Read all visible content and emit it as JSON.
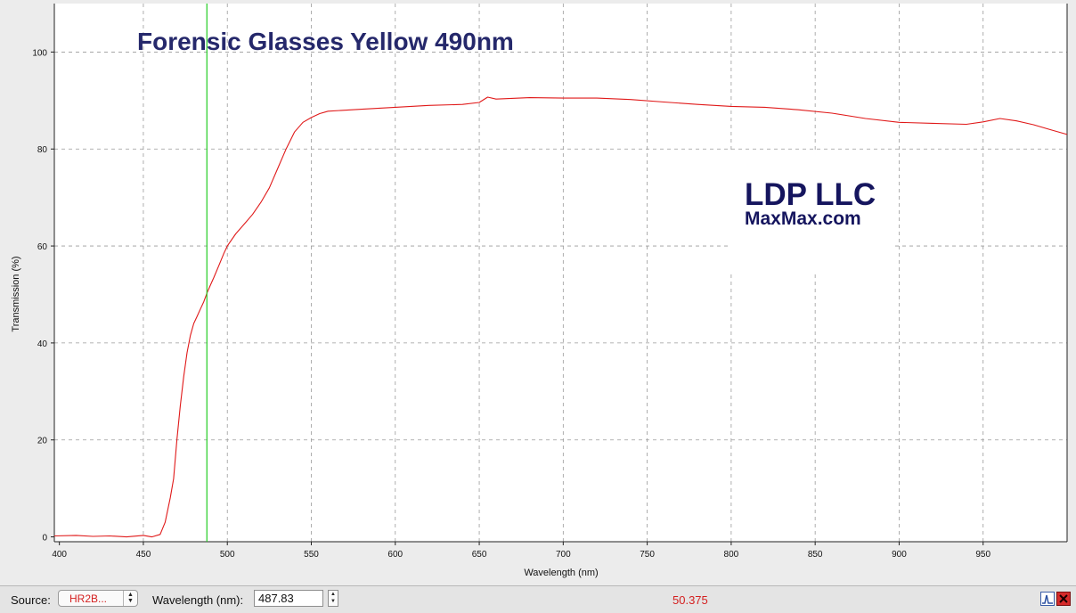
{
  "chart_data": {
    "type": "line",
    "title": "Forensic Glasses Yellow 490nm",
    "xlabel": "Wavelength (nm)",
    "ylabel": "Transmission (%)",
    "xlim": [
      397,
      1000
    ],
    "ylim": [
      -1,
      110
    ],
    "x_ticks": [
      400,
      450,
      500,
      550,
      600,
      650,
      700,
      750,
      800,
      850,
      900,
      950
    ],
    "y_ticks": [
      0,
      20,
      40,
      60,
      80,
      100
    ],
    "grid": true,
    "marker_wavelength": 487.83,
    "marker_color": "#22cc22",
    "series": [
      {
        "color": "#e01919",
        "x": [
          397,
          410,
          420,
          430,
          440,
          450,
          455,
          460,
          463,
          466,
          468,
          470,
          472,
          474,
          476,
          478,
          480,
          482,
          484,
          486,
          488,
          490,
          492,
          495,
          498,
          500,
          505,
          510,
          515,
          520,
          525,
          530,
          535,
          540,
          545,
          550,
          555,
          560,
          570,
          580,
          600,
          620,
          640,
          650,
          655,
          660,
          680,
          700,
          720,
          740,
          760,
          780,
          800,
          820,
          840,
          860,
          880,
          900,
          920,
          940,
          950,
          960,
          970,
          980,
          990,
          1000
        ],
        "y": [
          0.2,
          0.3,
          0.1,
          0.2,
          0,
          0.3,
          0,
          0.5,
          3,
          8,
          12,
          20,
          27,
          33,
          38,
          41.5,
          44,
          45.5,
          47,
          48.5,
          50.4,
          52,
          53.5,
          56,
          58.5,
          60,
          62.5,
          64.5,
          66.5,
          69,
          72,
          76,
          80,
          83.5,
          85.5,
          86.5,
          87.3,
          87.8,
          88,
          88.2,
          88.6,
          89,
          89.2,
          89.6,
          90.7,
          90.3,
          90.6,
          90.5,
          90.5,
          90.2,
          89.7,
          89.2,
          88.8,
          88.6,
          88.1,
          87.4,
          86.3,
          85.5,
          85.3,
          85.1,
          85.6,
          86.3,
          85.8,
          85,
          84,
          83
        ]
      }
    ]
  },
  "logo": {
    "line1": "LDP LLC",
    "line2": "MaxMax.com"
  },
  "statusbar": {
    "source_label": "Source:",
    "source_value": "HR2B...",
    "wavelength_label": "Wavelength (nm):",
    "wavelength_value": "487.83",
    "readout_value": "50.375"
  }
}
